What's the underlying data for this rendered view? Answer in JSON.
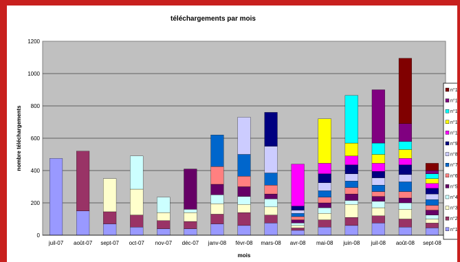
{
  "chart_data": {
    "type": "bar",
    "stacked": true,
    "title": "téléchargements par mois",
    "xlabel": "mois",
    "ylabel": "nombre téléchargements",
    "ylim": [
      0,
      1200
    ],
    "yticks": [
      0,
      200,
      400,
      600,
      800,
      1000,
      1200
    ],
    "grid": true,
    "legend_position": "right",
    "categories": [
      "juil-07",
      "août-07",
      "sept-07",
      "oct-07",
      "nov-07",
      "déc-07",
      "janv-08",
      "févr-08",
      "mars-08",
      "avr-08",
      "mai-08",
      "juin-08",
      "juil-08",
      "août-08",
      "sept-08"
    ],
    "series": [
      {
        "name": "n°1",
        "color": "#9999ff",
        "values": [
          475,
          150,
          70,
          50,
          40,
          40,
          70,
          60,
          75,
          30,
          50,
          60,
          75,
          50,
          45
        ]
      },
      {
        "name": "n°2",
        "color": "#993366",
        "values": [
          0,
          370,
          75,
          75,
          50,
          45,
          60,
          80,
          50,
          15,
          45,
          50,
          45,
          50,
          30
        ]
      },
      {
        "name": "n°3",
        "color": "#ffffcc",
        "values": [
          0,
          0,
          205,
          160,
          50,
          55,
          65,
          50,
          50,
          15,
          40,
          80,
          50,
          60,
          25
        ]
      },
      {
        "name": "n°4",
        "color": "#ccffff",
        "values": [
          0,
          0,
          0,
          205,
          95,
          20,
          55,
          50,
          50,
          15,
          35,
          25,
          40,
          40,
          25
        ]
      },
      {
        "name": "n°5",
        "color": "#660066",
        "values": [
          0,
          0,
          0,
          0,
          0,
          250,
          65,
          60,
          30,
          20,
          30,
          40,
          30,
          30,
          30
        ]
      },
      {
        "name": "n°6",
        "color": "#ff8080",
        "values": [
          0,
          0,
          0,
          0,
          0,
          0,
          110,
          65,
          55,
          20,
          35,
          40,
          30,
          40,
          30
        ]
      },
      {
        "name": "n°7",
        "color": "#0066cc",
        "values": [
          0,
          0,
          0,
          0,
          0,
          0,
          195,
          135,
          75,
          20,
          40,
          40,
          40,
          60,
          35
        ]
      },
      {
        "name": "n°8",
        "color": "#ccccff",
        "values": [
          0,
          0,
          0,
          0,
          0,
          0,
          0,
          230,
          165,
          20,
          50,
          45,
          45,
          45,
          35
        ]
      },
      {
        "name": "n°9",
        "color": "#000080",
        "values": [
          0,
          0,
          0,
          0,
          0,
          0,
          0,
          0,
          210,
          25,
          55,
          55,
          40,
          60,
          35
        ]
      },
      {
        "name": "n°10",
        "color": "#ff00ff",
        "values": [
          0,
          0,
          0,
          0,
          0,
          0,
          0,
          0,
          0,
          260,
          65,
          55,
          50,
          40,
          30
        ]
      },
      {
        "name": "n°11",
        "color": "#ffff00",
        "values": [
          0,
          0,
          0,
          0,
          0,
          0,
          0,
          0,
          0,
          0,
          275,
          80,
          55,
          55,
          30
        ]
      },
      {
        "name": "n°12",
        "color": "#00ffff",
        "values": [
          0,
          0,
          0,
          0,
          0,
          0,
          0,
          0,
          0,
          0,
          0,
          295,
          70,
          50,
          30
        ]
      },
      {
        "name": "n°13",
        "color": "#800080",
        "values": [
          0,
          0,
          0,
          0,
          0,
          0,
          0,
          0,
          0,
          0,
          0,
          0,
          330,
          110,
          20
        ]
      },
      {
        "name": "n°14",
        "color": "#800000",
        "values": [
          0,
          0,
          0,
          0,
          0,
          0,
          0,
          0,
          0,
          0,
          0,
          0,
          0,
          405,
          45
        ]
      }
    ]
  }
}
